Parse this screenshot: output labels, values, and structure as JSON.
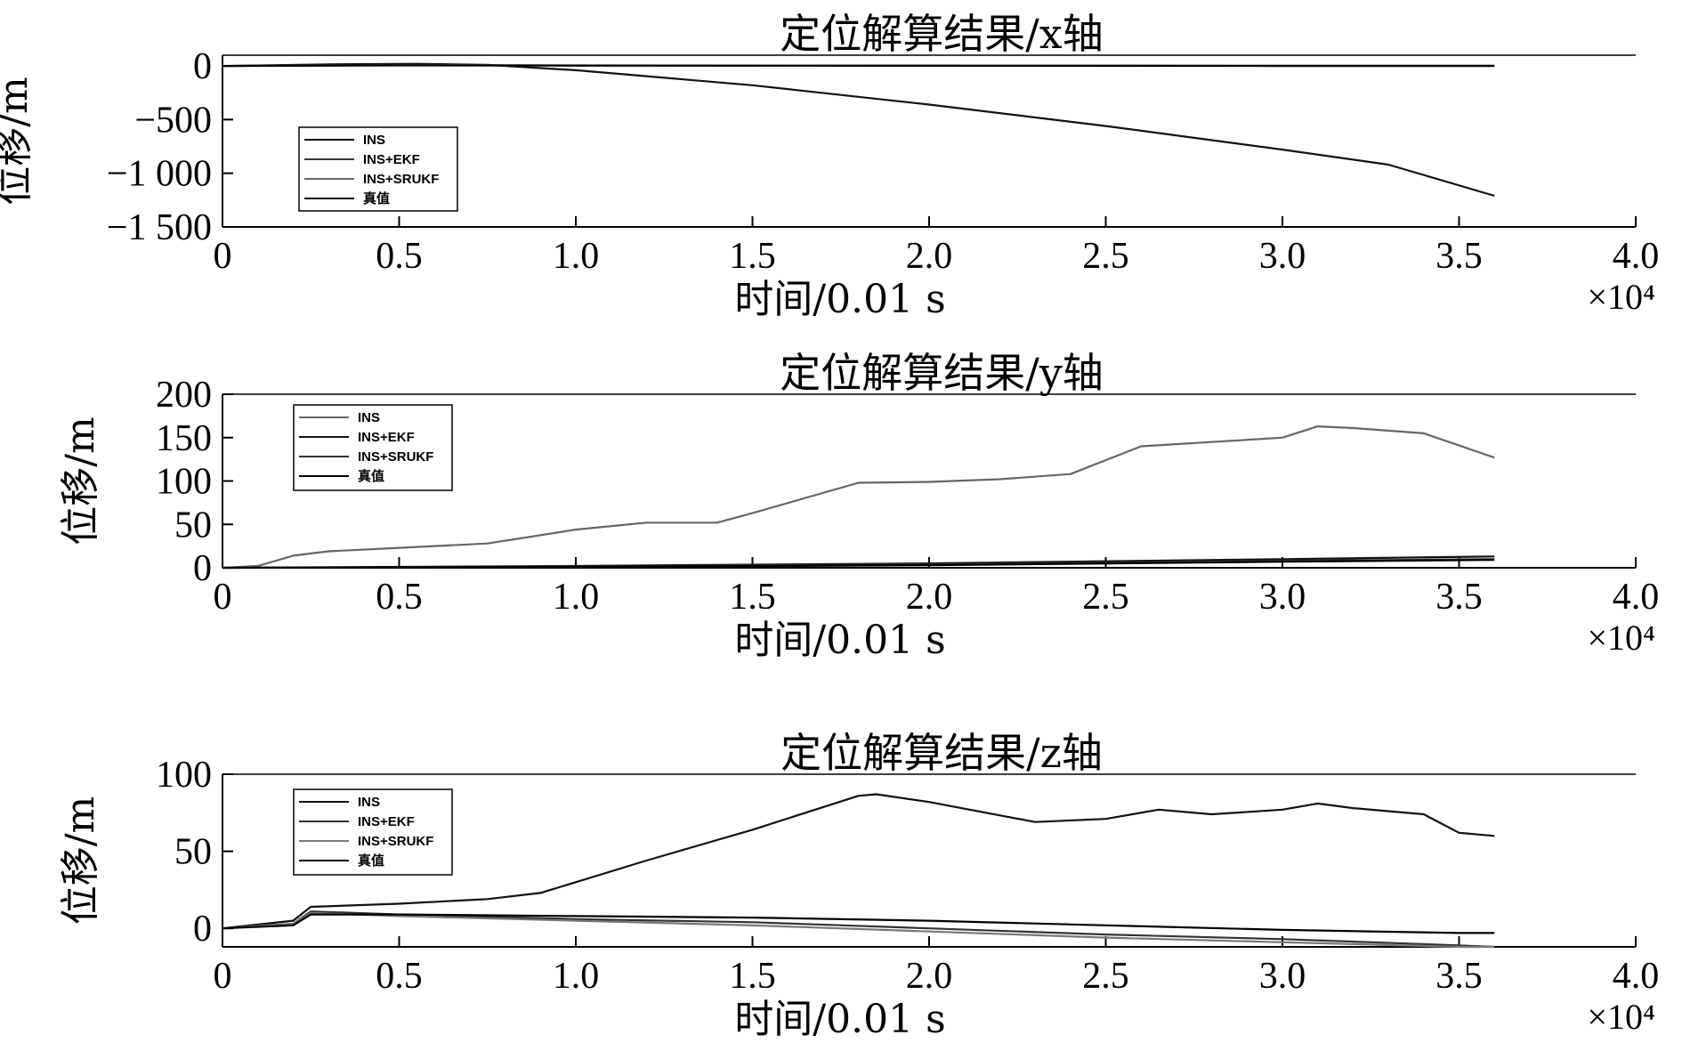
{
  "chart_data": [
    {
      "type": "line",
      "title": "定位解算结果/x轴",
      "xlabel": "时间/0.01 s",
      "ylabel": "位移/m",
      "x_multiplier": "×10⁴",
      "xlim": [
        0,
        4.0
      ],
      "ylim": [
        -1500,
        100
      ],
      "xticks": [
        "0",
        "0.5",
        "1.0",
        "1.5",
        "2.0",
        "2.5",
        "3.0",
        "3.5",
        "4.0"
      ],
      "yticks": [
        {
          "value": 0,
          "label": "0"
        },
        {
          "value": -500,
          "label": "−500"
        },
        {
          "value": -1000,
          "label": "−1 000"
        },
        {
          "value": -1500,
          "label": "−1 500"
        }
      ],
      "legend_position": "left",
      "series": [
        {
          "name": "INS",
          "color": "#111111",
          "points": [
            [
              0,
              0
            ],
            [
              0.3,
              15
            ],
            [
              0.55,
              20
            ],
            [
              0.75,
              10
            ],
            [
              1.0,
              -40
            ],
            [
              1.5,
              -180
            ],
            [
              2.0,
              -360
            ],
            [
              2.5,
              -560
            ],
            [
              3.0,
              -780
            ],
            [
              3.3,
              -920
            ],
            [
              3.6,
              -1210
            ]
          ]
        },
        {
          "name": "INS+EKF",
          "color": "#333333",
          "points": [
            [
              0,
              0
            ],
            [
              0.5,
              8
            ],
            [
              1.0,
              5
            ],
            [
              2.0,
              3
            ],
            [
              3.0,
              2
            ],
            [
              3.6,
              2
            ]
          ]
        },
        {
          "name": "INS+SRUKF",
          "color": "#666666",
          "points": [
            [
              0,
              0
            ],
            [
              0.5,
              6
            ],
            [
              1.0,
              4
            ],
            [
              2.0,
              2
            ],
            [
              3.0,
              1
            ],
            [
              3.6,
              1
            ]
          ]
        },
        {
          "name": "真值",
          "color": "#000000",
          "points": [
            [
              0,
              0
            ],
            [
              0.5,
              5
            ],
            [
              1.0,
              3
            ],
            [
              2.0,
              1
            ],
            [
              3.0,
              0
            ],
            [
              3.6,
              0
            ]
          ]
        }
      ]
    },
    {
      "type": "line",
      "title": "定位解算结果/y轴",
      "xlabel": "时间/0.01 s",
      "ylabel": "位移/m",
      "x_multiplier": "×10⁴",
      "xlim": [
        0,
        4.0
      ],
      "ylim": [
        0,
        200
      ],
      "xticks": [
        "0",
        "0.5",
        "1.0",
        "1.5",
        "2.0",
        "2.5",
        "3.0",
        "3.5",
        "4.0"
      ],
      "yticks": [
        {
          "value": 0,
          "label": "0"
        },
        {
          "value": 50,
          "label": "50"
        },
        {
          "value": 100,
          "label": "100"
        },
        {
          "value": 150,
          "label": "150"
        },
        {
          "value": 200,
          "label": "200"
        }
      ],
      "legend_position": "left",
      "series": [
        {
          "name": "INS",
          "color": "#666666",
          "points": [
            [
              0,
              0
            ],
            [
              0.1,
              2
            ],
            [
              0.2,
              14
            ],
            [
              0.3,
              19
            ],
            [
              0.5,
              23
            ],
            [
              0.75,
              28
            ],
            [
              1.0,
              44
            ],
            [
              1.2,
              52
            ],
            [
              1.4,
              52
            ],
            [
              1.5,
              63
            ],
            [
              1.8,
              98
            ],
            [
              2.0,
              99
            ],
            [
              2.2,
              102
            ],
            [
              2.4,
              108
            ],
            [
              2.6,
              140
            ],
            [
              3.0,
              150
            ],
            [
              3.1,
              163
            ],
            [
              3.2,
              161
            ],
            [
              3.4,
              155
            ],
            [
              3.6,
              127
            ]
          ]
        },
        {
          "name": "INS+EKF",
          "color": "#111111",
          "points": [
            [
              0,
              0
            ],
            [
              1.0,
              2
            ],
            [
              2.0,
              5
            ],
            [
              3.0,
              10
            ],
            [
              3.6,
              13
            ]
          ]
        },
        {
          "name": "INS+SRUKF",
          "color": "#333333",
          "points": [
            [
              0,
              0
            ],
            [
              1.0,
              1
            ],
            [
              2.0,
              4
            ],
            [
              3.0,
              8
            ],
            [
              3.6,
              10
            ]
          ]
        },
        {
          "name": "真值",
          "color": "#000000",
          "points": [
            [
              0,
              0
            ],
            [
              1.0,
              1
            ],
            [
              2.0,
              3
            ],
            [
              3.0,
              7
            ],
            [
              3.6,
              9
            ]
          ]
        }
      ]
    },
    {
      "type": "line",
      "title": "定位解算结果/z轴",
      "xlabel": "时间/0.01 s",
      "ylabel": "位移/m",
      "x_multiplier": "×10⁴",
      "xlim": [
        0,
        4.0
      ],
      "ylim": [
        -12,
        100
      ],
      "xticks": [
        "0",
        "0.5",
        "1.0",
        "1.5",
        "2.0",
        "2.5",
        "3.0",
        "3.5",
        "4.0"
      ],
      "yticks": [
        {
          "value": 0,
          "label": "0"
        },
        {
          "value": 50,
          "label": "50"
        },
        {
          "value": 100,
          "label": "100"
        }
      ],
      "legend_position": "left",
      "series": [
        {
          "name": "INS",
          "color": "#111111",
          "points": [
            [
              0,
              0
            ],
            [
              0.2,
              5
            ],
            [
              0.25,
              14
            ],
            [
              0.5,
              16
            ],
            [
              0.75,
              19
            ],
            [
              0.9,
              23
            ],
            [
              1.0,
              30
            ],
            [
              1.2,
              44
            ],
            [
              1.5,
              64
            ],
            [
              1.65,
              75
            ],
            [
              1.8,
              86
            ],
            [
              1.85,
              87
            ],
            [
              2.0,
              82
            ],
            [
              2.3,
              69
            ],
            [
              2.5,
              71
            ],
            [
              2.65,
              77
            ],
            [
              2.8,
              74
            ],
            [
              3.0,
              77
            ],
            [
              3.1,
              81
            ],
            [
              3.2,
              78
            ],
            [
              3.4,
              74
            ],
            [
              3.5,
              62
            ],
            [
              3.6,
              60
            ]
          ]
        },
        {
          "name": "INS+EKF",
          "color": "#333333",
          "points": [
            [
              0,
              0
            ],
            [
              0.2,
              3
            ],
            [
              0.25,
              11
            ],
            [
              0.5,
              9
            ],
            [
              1.0,
              6
            ],
            [
              1.5,
              4
            ],
            [
              2.0,
              0
            ],
            [
              2.5,
              -4
            ],
            [
              3.0,
              -7
            ],
            [
              3.5,
              -11
            ],
            [
              3.6,
              -12
            ]
          ]
        },
        {
          "name": "INS+SRUKF",
          "color": "#777777",
          "points": [
            [
              0,
              0
            ],
            [
              0.2,
              3
            ],
            [
              0.25,
              10
            ],
            [
              0.5,
              8
            ],
            [
              1.0,
              5
            ],
            [
              1.5,
              2
            ],
            [
              2.0,
              -2
            ],
            [
              2.5,
              -6
            ],
            [
              3.0,
              -9
            ],
            [
              3.5,
              -12
            ],
            [
              3.6,
              -12
            ]
          ]
        },
        {
          "name": "真值",
          "color": "#000000",
          "points": [
            [
              0,
              0
            ],
            [
              0.2,
              2
            ],
            [
              0.25,
              9
            ],
            [
              0.5,
              9
            ],
            [
              1.0,
              8
            ],
            [
              1.5,
              7
            ],
            [
              2.0,
              5
            ],
            [
              2.5,
              2
            ],
            [
              3.0,
              -1
            ],
            [
              3.5,
              -3
            ],
            [
              3.6,
              -3
            ]
          ]
        }
      ]
    }
  ]
}
